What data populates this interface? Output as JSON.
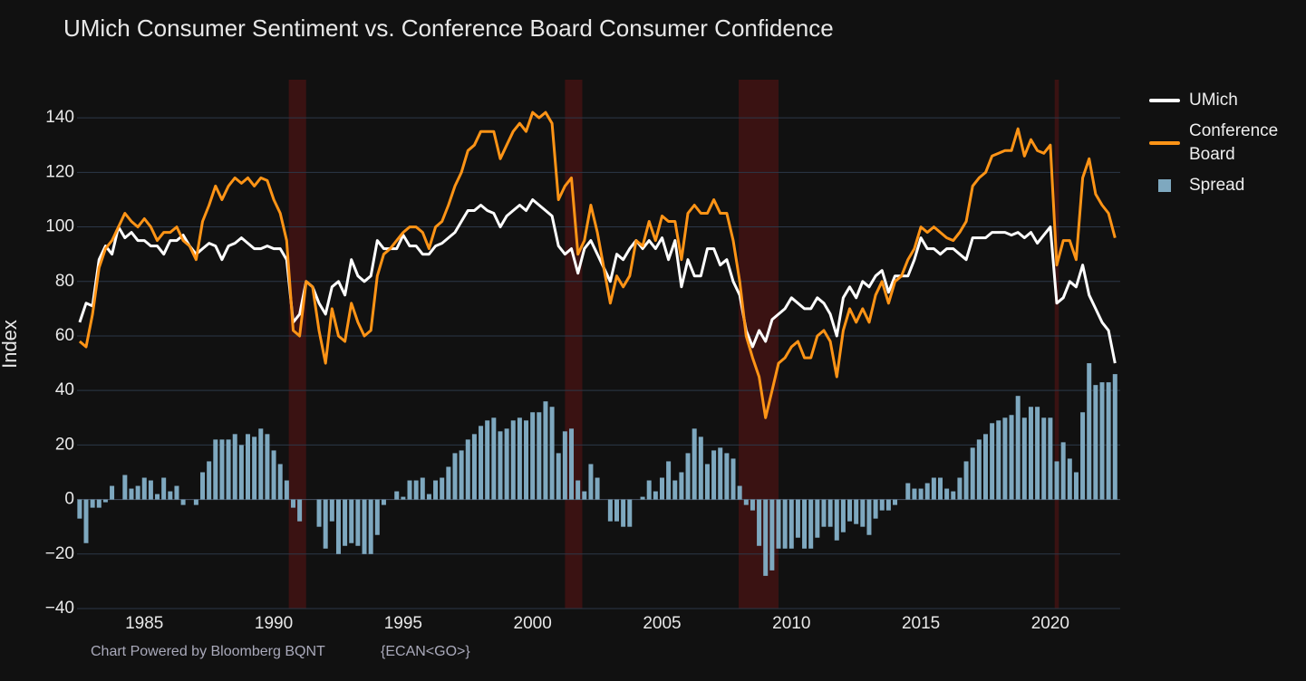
{
  "chart_data": {
    "type": "line_bar",
    "title": "UMich Consumer Sentiment vs. Conference Board Consumer Confidence",
    "y_label": "Index",
    "footer": "Chart Powered by Bloomberg BQNT",
    "footer_code": "{ECAN<GO>}",
    "xlim": [
      1982.4,
      2022.7
    ],
    "xticks": [
      1985,
      1990,
      1995,
      2000,
      2005,
      2010,
      2015,
      2020
    ],
    "ylim": [
      -40,
      154
    ],
    "yticks": [
      {
        "value": -40,
        "label": "−40"
      },
      {
        "value": -20,
        "label": "−20"
      },
      0,
      20,
      40,
      60,
      80,
      100,
      120,
      140
    ],
    "grid": true,
    "recession_color": "#3a1212",
    "recessions": [
      [
        1990.58,
        1991.25
      ],
      [
        2001.25,
        2001.92
      ],
      [
        2007.96,
        2009.5
      ],
      [
        2020.17,
        2020.33
      ]
    ],
    "x": [
      1982.5,
      1982.75,
      1983,
      1983.25,
      1983.5,
      1983.75,
      1984,
      1984.25,
      1984.5,
      1984.75,
      1985,
      1985.25,
      1985.5,
      1985.75,
      1986,
      1986.25,
      1986.5,
      1986.75,
      1987,
      1987.25,
      1987.5,
      1987.75,
      1988,
      1988.25,
      1988.5,
      1988.75,
      1989,
      1989.25,
      1989.5,
      1989.75,
      1990,
      1990.25,
      1990.5,
      1990.75,
      1991,
      1991.25,
      1991.5,
      1991.75,
      1992,
      1992.25,
      1992.5,
      1992.75,
      1993,
      1993.25,
      1993.5,
      1993.75,
      1994,
      1994.25,
      1994.5,
      1994.75,
      1995,
      1995.25,
      1995.5,
      1995.75,
      1996,
      1996.25,
      1996.5,
      1996.75,
      1997,
      1997.25,
      1997.5,
      1997.75,
      1998,
      1998.25,
      1998.5,
      1998.75,
      1999,
      1999.25,
      1999.5,
      1999.75,
      2000,
      2000.25,
      2000.5,
      2000.75,
      2001,
      2001.25,
      2001.5,
      2001.75,
      2002,
      2002.25,
      2002.5,
      2002.75,
      2003,
      2003.25,
      2003.5,
      2003.75,
      2004,
      2004.25,
      2004.5,
      2004.75,
      2005,
      2005.25,
      2005.5,
      2005.75,
      2006,
      2006.25,
      2006.5,
      2006.75,
      2007,
      2007.25,
      2007.5,
      2007.75,
      2008,
      2008.25,
      2008.5,
      2008.75,
      2009,
      2009.25,
      2009.5,
      2009.75,
      2010,
      2010.25,
      2010.5,
      2010.75,
      2011,
      2011.25,
      2011.5,
      2011.75,
      2012,
      2012.25,
      2012.5,
      2012.75,
      2013,
      2013.25,
      2013.5,
      2013.75,
      2014,
      2014.25,
      2014.5,
      2014.75,
      2015,
      2015.25,
      2015.5,
      2015.75,
      2016,
      2016.25,
      2016.5,
      2016.75,
      2017,
      2017.25,
      2017.5,
      2017.75,
      2018,
      2018.25,
      2018.5,
      2018.75,
      2019,
      2019.25,
      2019.5,
      2019.75,
      2020,
      2020.25,
      2020.5,
      2020.75,
      2021,
      2021.25,
      2021.5,
      2021.75,
      2022,
      2022.25,
      2022.5
    ],
    "series": [
      {
        "name": "UMich",
        "kind": "line",
        "color": "#ffffff",
        "values": [
          65,
          72,
          71,
          88,
          93,
          90,
          100,
          96,
          98,
          95,
          95,
          93,
          93,
          90,
          95,
          95,
          97,
          93,
          90,
          92,
          94,
          93,
          88,
          93,
          94,
          96,
          94,
          92,
          92,
          93,
          92,
          92,
          88,
          65,
          68,
          80,
          78,
          72,
          68,
          78,
          80,
          75,
          88,
          82,
          80,
          82,
          95,
          92,
          92,
          92,
          97,
          93,
          93,
          90,
          90,
          93,
          94,
          96,
          98,
          102,
          106,
          106,
          108,
          106,
          105,
          100,
          104,
          106,
          108,
          106,
          110,
          108,
          106,
          104,
          93,
          90,
          92,
          83,
          92,
          95,
          90,
          85,
          80,
          90,
          88,
          92,
          95,
          92,
          95,
          92,
          96,
          88,
          95,
          78,
          88,
          82,
          82,
          92,
          92,
          86,
          88,
          80,
          75,
          62,
          56,
          62,
          58,
          66,
          68,
          70,
          74,
          72,
          70,
          70,
          74,
          72,
          68,
          60,
          74,
          78,
          74,
          80,
          78,
          82,
          84,
          76,
          82,
          82,
          82,
          88,
          96,
          92,
          92,
          90,
          92,
          92,
          90,
          88,
          96,
          96,
          96,
          98,
          98,
          98,
          97,
          98,
          96,
          98,
          94,
          97,
          100,
          72,
          74,
          80,
          78,
          86,
          75,
          70,
          65,
          62,
          50
        ]
      },
      {
        "name": "Conference Board",
        "kind": "line",
        "color": "#ff9416",
        "values": [
          58,
          56,
          68,
          85,
          92,
          95,
          100,
          105,
          102,
          100,
          103,
          100,
          95,
          98,
          98,
          100,
          95,
          93,
          88,
          102,
          108,
          115,
          110,
          115,
          118,
          116,
          118,
          115,
          118,
          117,
          110,
          105,
          95,
          62,
          60,
          80,
          78,
          62,
          50,
          70,
          60,
          58,
          72,
          65,
          60,
          62,
          82,
          90,
          92,
          95,
          98,
          100,
          100,
          98,
          92,
          100,
          102,
          108,
          115,
          120,
          128,
          130,
          135,
          135,
          135,
          125,
          130,
          135,
          138,
          135,
          142,
          140,
          142,
          138,
          110,
          115,
          118,
          90,
          95,
          108,
          98,
          85,
          72,
          82,
          78,
          82,
          95,
          93,
          102,
          95,
          104,
          102,
          102,
          88,
          105,
          108,
          105,
          105,
          110,
          105,
          105,
          95,
          80,
          60,
          52,
          45,
          30,
          40,
          50,
          52,
          56,
          58,
          52,
          52,
          60,
          62,
          58,
          45,
          62,
          70,
          65,
          70,
          65,
          75,
          80,
          72,
          80,
          82,
          88,
          92,
          100,
          98,
          100,
          98,
          96,
          95,
          98,
          102,
          115,
          118,
          120,
          126,
          127,
          128,
          128,
          136,
          126,
          132,
          128,
          127,
          130,
          86,
          95,
          95,
          88,
          118,
          125,
          112,
          108,
          105,
          96
        ]
      },
      {
        "name": "Spread",
        "kind": "bar",
        "color": "#7ea8bf",
        "values": [
          -7,
          -16,
          -3,
          -3,
          -1,
          5,
          0,
          9,
          4,
          5,
          8,
          7,
          2,
          8,
          3,
          5,
          -2,
          0,
          -2,
          10,
          14,
          22,
          22,
          22,
          24,
          20,
          24,
          23,
          26,
          24,
          18,
          13,
          7,
          -3,
          -8,
          0,
          0,
          -10,
          -18,
          -8,
          -20,
          -17,
          -16,
          -17,
          -20,
          -20,
          -13,
          -2,
          0,
          3,
          1,
          7,
          7,
          8,
          2,
          7,
          8,
          12,
          17,
          18,
          22,
          24,
          27,
          29,
          30,
          25,
          26,
          29,
          30,
          29,
          32,
          32,
          36,
          34,
          17,
          25,
          26,
          7,
          3,
          13,
          8,
          0,
          -8,
          -8,
          -10,
          -10,
          0,
          1,
          7,
          3,
          8,
          14,
          7,
          10,
          17,
          26,
          23,
          13,
          18,
          19,
          17,
          15,
          5,
          -2,
          -4,
          -17,
          -28,
          -26,
          -18,
          -18,
          -18,
          -14,
          -18,
          -18,
          -14,
          -10,
          -10,
          -15,
          -12,
          -8,
          -9,
          -10,
          -13,
          -7,
          -4,
          -4,
          -2,
          0,
          6,
          4,
          4,
          6,
          8,
          8,
          4,
          3,
          8,
          14,
          19,
          22,
          24,
          28,
          29,
          30,
          31,
          38,
          30,
          34,
          34,
          30,
          30,
          14,
          21,
          15,
          10,
          32,
          50,
          42,
          43,
          43,
          46
        ]
      }
    ]
  }
}
